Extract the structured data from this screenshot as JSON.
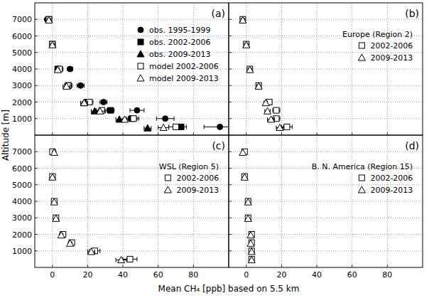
{
  "figure": {
    "xlabel": "Mean CH₄ [ppb] based on 5.5 km",
    "ylabel": "Altitude [m]"
  },
  "chart_data": [
    {
      "type": "scatter",
      "title": "(a)",
      "xlim": [
        -10,
        100
      ],
      "ylim": [
        0,
        8000
      ],
      "xticks": [
        0,
        20,
        40,
        60,
        80
      ],
      "yticks": [
        1000,
        2000,
        3000,
        4000,
        5000,
        6000,
        7000
      ],
      "grid": true,
      "legend": "upper right",
      "tick_labels": "y",
      "series": [
        {
          "name": "obs. 1995-1999",
          "marker": "filled-circle",
          "color": "#000000",
          "x": [
            95,
            64,
            48,
            29,
            16,
            10,
            0,
            -3
          ],
          "y": [
            500,
            1000,
            1500,
            2000,
            3000,
            4000,
            5500,
            7000
          ],
          "xerr": [
            9,
            5,
            4,
            2,
            2,
            1.5,
            1,
            1
          ]
        },
        {
          "name": "obs. 2002-2006",
          "marker": "filled-square",
          "color": "#000000",
          "x": [
            73,
            45,
            33,
            20,
            9,
            3,
            0,
            -2
          ],
          "y": [
            500,
            1000,
            1500,
            2000,
            3000,
            4000,
            5500,
            7000
          ],
          "xerr": [
            3,
            3,
            2,
            2,
            2,
            1,
            1,
            1
          ]
        },
        {
          "name": "obs. 2009-2013",
          "marker": "filled-triangle",
          "color": "#000000",
          "x": [
            54,
            38,
            24,
            18
          ],
          "y": [
            420,
            950,
            1450,
            1950
          ],
          "xerr": [
            2,
            2,
            2,
            1
          ]
        },
        {
          "name": "model 2002-2006",
          "marker": "open-square",
          "color": "#000000",
          "x": [
            70,
            46,
            28,
            21,
            9,
            4,
            0,
            -2
          ],
          "y": [
            500,
            1000,
            1500,
            2000,
            3000,
            4000,
            5500,
            7000
          ],
          "xerr": [
            4,
            3,
            3,
            2,
            2,
            2,
            1,
            1
          ]
        },
        {
          "name": "model 2009-2013",
          "marker": "open-triangle",
          "color": "#000000",
          "x": [
            63,
            41,
            27,
            18,
            8,
            3,
            0,
            -2
          ],
          "y": [
            450,
            950,
            1450,
            1950,
            2950,
            3950,
            5450,
            6950
          ],
          "xerr": [
            3,
            3,
            3,
            2,
            2,
            1,
            1,
            1
          ]
        }
      ]
    },
    {
      "type": "scatter",
      "title": "(b)",
      "subtitle": "Europe (Region 2)",
      "xlim": [
        -10,
        100
      ],
      "ylim": [
        0,
        8000
      ],
      "xticks": [
        0,
        20,
        40,
        60,
        80
      ],
      "yticks": [
        1000,
        2000,
        3000,
        4000,
        5000,
        6000,
        7000
      ],
      "grid": true,
      "legend": "upper right",
      "tick_labels": false,
      "series": [
        {
          "name": "2002-2006",
          "marker": "open-square",
          "color": "#000000",
          "x": [
            23,
            17,
            17,
            13,
            7,
            2,
            0,
            -2
          ],
          "y": [
            500,
            1000,
            1500,
            2000,
            3000,
            4000,
            5500,
            7000
          ],
          "xerr": [
            3,
            2,
            2,
            1.5,
            1,
            1,
            1,
            1
          ]
        },
        {
          "name": "2009-2013",
          "marker": "open-triangle",
          "color": "#000000",
          "x": [
            19,
            14,
            12,
            11,
            7,
            2,
            0,
            -2
          ],
          "y": [
            450,
            950,
            1450,
            1950,
            2950,
            3950,
            5450,
            6950
          ],
          "xerr": [
            2,
            2,
            1.5,
            1,
            1,
            1,
            1,
            1
          ]
        }
      ]
    },
    {
      "type": "scatter",
      "title": "(c)",
      "subtitle": "WSL (Region 5)",
      "xlim": [
        -10,
        100
      ],
      "ylim": [
        0,
        8000
      ],
      "xticks": [
        0,
        20,
        40,
        60,
        80
      ],
      "yticks": [
        1000,
        2000,
        3000,
        4000,
        5000,
        6000,
        7000
      ],
      "grid": true,
      "legend": "upper right",
      "tick_labels": true,
      "series": [
        {
          "name": "2002-2006",
          "marker": "open-square",
          "color": "#000000",
          "x": [
            44,
            24,
            11,
            6,
            2,
            1,
            0,
            0
          ],
          "y": [
            500,
            1000,
            1500,
            2000,
            3000,
            4000,
            5500,
            7000
          ],
          "xerr": [
            4,
            3,
            1,
            1,
            0.5,
            0.5,
            0.5,
            1
          ]
        },
        {
          "name": "2009-2013",
          "marker": "open-triangle",
          "color": "#000000",
          "x": [
            39,
            22,
            10,
            5,
            2,
            1,
            0,
            1
          ],
          "y": [
            450,
            950,
            1450,
            1950,
            2950,
            3950,
            5450,
            6950
          ],
          "xerr": [
            3,
            2,
            1,
            1,
            0.5,
            0.5,
            0.5,
            1
          ]
        }
      ]
    },
    {
      "type": "scatter",
      "title": "(d)",
      "subtitle": "B. N. America (Region 15)",
      "xlim": [
        -10,
        100
      ],
      "ylim": [
        0,
        8000
      ],
      "xticks": [
        0,
        20,
        40,
        60,
        80
      ],
      "yticks": [
        1000,
        2000,
        3000,
        4000,
        5000,
        6000,
        7000
      ],
      "grid": true,
      "legend": "upper right",
      "tick_labels": "x",
      "series": [
        {
          "name": "2002-2006",
          "marker": "open-square",
          "color": "#000000",
          "x": [
            3,
            3,
            3,
            3,
            1,
            1,
            -1,
            -1
          ],
          "y": [
            500,
            1000,
            1500,
            2000,
            3000,
            4000,
            5500,
            7000
          ],
          "xerr": [
            0.5,
            0.5,
            0.5,
            0.5,
            0.5,
            0.5,
            0.5,
            0.5
          ]
        },
        {
          "name": "2009-2013",
          "marker": "open-triangle",
          "color": "#000000",
          "x": [
            3,
            3,
            2.5,
            2.5,
            1,
            1,
            -1,
            -2
          ],
          "y": [
            450,
            950,
            1450,
            1950,
            2950,
            3950,
            5450,
            6950
          ],
          "xerr": [
            0.5,
            0.5,
            0.5,
            0.5,
            0.5,
            0.5,
            0.5,
            0.5
          ]
        }
      ]
    }
  ]
}
